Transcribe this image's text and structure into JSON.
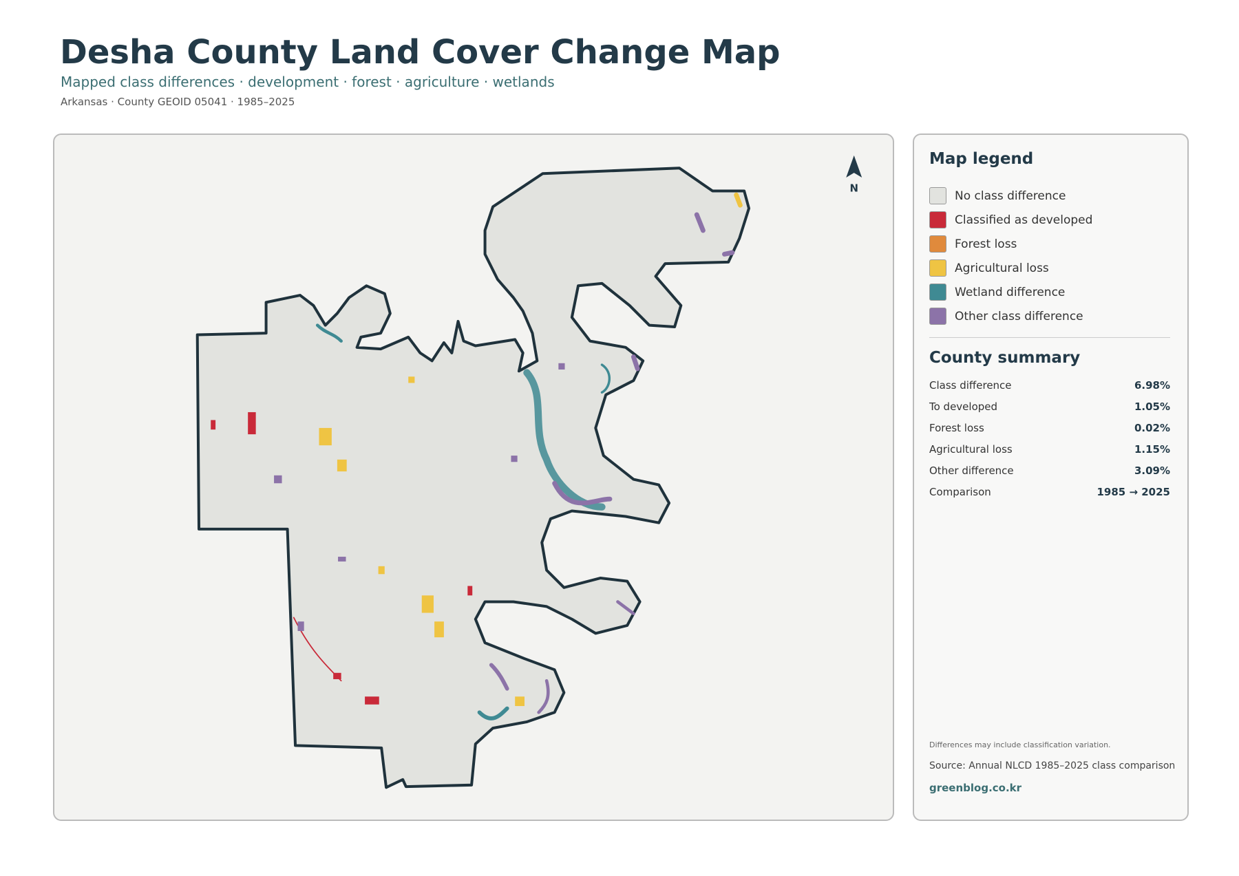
{
  "header": {
    "title": "Desha County Land Cover Change Map",
    "subtitle": "Mapped class differences · development · forest · agriculture · wetlands",
    "meta": "Arkansas · County GEOID 05041 · 1985–2025"
  },
  "map": {
    "north_label": "N"
  },
  "legend": {
    "title": "Map legend",
    "items": [
      {
        "label": "No class difference",
        "color": "#e2e3df"
      },
      {
        "label": "Classified as developed",
        "color": "#c92a39"
      },
      {
        "label": "Forest loss",
        "color": "#e08a3c"
      },
      {
        "label": "Agricultural loss",
        "color": "#efc443"
      },
      {
        "label": "Wetland difference",
        "color": "#3f8a93"
      },
      {
        "label": "Other class difference",
        "color": "#8c73a8"
      }
    ]
  },
  "summary": {
    "title": "County summary",
    "rows": [
      {
        "label": "Class difference",
        "value": "6.98%"
      },
      {
        "label": "To developed",
        "value": "1.05%"
      },
      {
        "label": "Forest loss",
        "value": "0.02%"
      },
      {
        "label": "Agricultural loss",
        "value": "1.15%"
      },
      {
        "label": "Other difference",
        "value": "3.09%"
      },
      {
        "label": "Comparison",
        "value": "1985 → 2025"
      }
    ]
  },
  "footer": {
    "note": "Differences may include classification variation.",
    "source": "Source: Annual NLCD 1985–2025 class comparison",
    "credit": "greenblog.co.kr"
  }
}
